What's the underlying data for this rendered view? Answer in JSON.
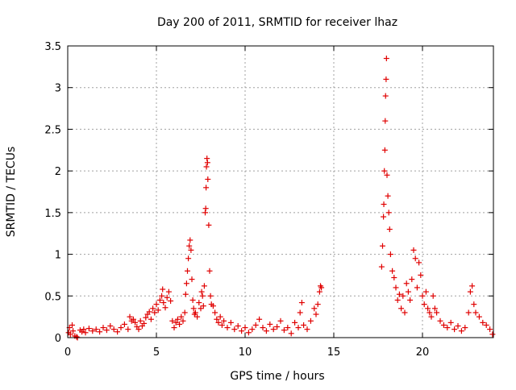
{
  "chart_data": {
    "type": "scatter",
    "title": "Day 200 of 2011, SRMTID for receiver lhaz",
    "xlabel": "GPS time / hours",
    "ylabel": "SRMTID / TECUs",
    "xlim": [
      0,
      24
    ],
    "ylim": [
      0,
      3.5
    ],
    "grid": true,
    "legend": "none",
    "marker": "+",
    "marker_color": "#e00000",
    "x_ticks": [
      {
        "value": 0,
        "label": "0"
      },
      {
        "value": 5,
        "label": "5"
      },
      {
        "value": 10,
        "label": "10"
      },
      {
        "value": 15,
        "label": "15"
      },
      {
        "value": 20,
        "label": "20"
      }
    ],
    "y_ticks": [
      {
        "value": 0,
        "label": "0"
      },
      {
        "value": 0.5,
        "label": "0.5"
      },
      {
        "value": 1,
        "label": "1"
      },
      {
        "value": 1.5,
        "label": "1.5"
      },
      {
        "value": 2,
        "label": "2"
      },
      {
        "value": 2.5,
        "label": "2.5"
      },
      {
        "value": 3,
        "label": "3"
      },
      {
        "value": 3.5,
        "label": "3.5"
      }
    ],
    "series": [
      {
        "name": "SRMTID",
        "points": [
          [
            0.05,
            0.06
          ],
          [
            0.1,
            0.12
          ],
          [
            0.15,
            0.04
          ],
          [
            0.25,
            0.15
          ],
          [
            0.3,
            0.08
          ],
          [
            0.4,
            0.02
          ],
          [
            0.5,
            0.01
          ],
          [
            0.55,
            0.0
          ],
          [
            0.7,
            0.09
          ],
          [
            0.8,
            0.07
          ],
          [
            0.9,
            0.1
          ],
          [
            1.0,
            0.06
          ],
          [
            1.2,
            0.11
          ],
          [
            1.4,
            0.08
          ],
          [
            1.6,
            0.1
          ],
          [
            1.8,
            0.07
          ],
          [
            2.0,
            0.12
          ],
          [
            2.2,
            0.09
          ],
          [
            2.4,
            0.14
          ],
          [
            2.6,
            0.1
          ],
          [
            2.8,
            0.07
          ],
          [
            3.0,
            0.12
          ],
          [
            3.2,
            0.16
          ],
          [
            3.4,
            0.1
          ],
          [
            3.5,
            0.25
          ],
          [
            3.6,
            0.2
          ],
          [
            3.7,
            0.22
          ],
          [
            3.8,
            0.18
          ],
          [
            3.9,
            0.13
          ],
          [
            4.0,
            0.1
          ],
          [
            4.1,
            0.2
          ],
          [
            4.2,
            0.14
          ],
          [
            4.3,
            0.17
          ],
          [
            4.4,
            0.24
          ],
          [
            4.5,
            0.28
          ],
          [
            4.6,
            0.31
          ],
          [
            4.7,
            0.22
          ],
          [
            4.8,
            0.35
          ],
          [
            4.9,
            0.3
          ],
          [
            5.0,
            0.4
          ],
          [
            5.1,
            0.33
          ],
          [
            5.2,
            0.45
          ],
          [
            5.3,
            0.5
          ],
          [
            5.35,
            0.58
          ],
          [
            5.4,
            0.42
          ],
          [
            5.5,
            0.36
          ],
          [
            5.6,
            0.48
          ],
          [
            5.7,
            0.55
          ],
          [
            5.8,
            0.44
          ],
          [
            5.9,
            0.2
          ],
          [
            6.0,
            0.12
          ],
          [
            6.1,
            0.18
          ],
          [
            6.2,
            0.22
          ],
          [
            6.3,
            0.16
          ],
          [
            6.4,
            0.25
          ],
          [
            6.5,
            0.2
          ],
          [
            6.6,
            0.3
          ],
          [
            6.65,
            0.52
          ],
          [
            6.7,
            0.65
          ],
          [
            6.75,
            0.8
          ],
          [
            6.8,
            0.95
          ],
          [
            6.85,
            1.1
          ],
          [
            6.9,
            1.17
          ],
          [
            6.95,
            1.05
          ],
          [
            7.0,
            0.7
          ],
          [
            7.05,
            0.45
          ],
          [
            7.1,
            0.35
          ],
          [
            7.15,
            0.28
          ],
          [
            7.2,
            0.3
          ],
          [
            7.3,
            0.25
          ],
          [
            7.4,
            0.42
          ],
          [
            7.5,
            0.35
          ],
          [
            7.55,
            0.55
          ],
          [
            7.6,
            0.5
          ],
          [
            7.65,
            0.38
          ],
          [
            7.7,
            0.62
          ],
          [
            7.75,
            1.5
          ],
          [
            7.78,
            1.55
          ],
          [
            7.8,
            1.8
          ],
          [
            7.82,
            2.05
          ],
          [
            7.85,
            2.15
          ],
          [
            7.88,
            2.1
          ],
          [
            7.9,
            1.9
          ],
          [
            7.95,
            1.35
          ],
          [
            8.0,
            0.8
          ],
          [
            8.05,
            0.5
          ],
          [
            8.1,
            0.4
          ],
          [
            8.2,
            0.38
          ],
          [
            8.3,
            0.3
          ],
          [
            8.4,
            0.22
          ],
          [
            8.5,
            0.18
          ],
          [
            8.6,
            0.25
          ],
          [
            8.7,
            0.15
          ],
          [
            8.8,
            0.2
          ],
          [
            9.0,
            0.12
          ],
          [
            9.2,
            0.18
          ],
          [
            9.4,
            0.1
          ],
          [
            9.6,
            0.14
          ],
          [
            9.8,
            0.08
          ],
          [
            10.0,
            0.12
          ],
          [
            10.2,
            0.06
          ],
          [
            10.4,
            0.1
          ],
          [
            10.6,
            0.15
          ],
          [
            10.8,
            0.22
          ],
          [
            11.0,
            0.12
          ],
          [
            11.2,
            0.08
          ],
          [
            11.4,
            0.16
          ],
          [
            11.6,
            0.1
          ],
          [
            11.8,
            0.13
          ],
          [
            12.0,
            0.2
          ],
          [
            12.2,
            0.09
          ],
          [
            12.4,
            0.12
          ],
          [
            12.6,
            0.05
          ],
          [
            12.8,
            0.18
          ],
          [
            13.0,
            0.12
          ],
          [
            13.1,
            0.3
          ],
          [
            13.2,
            0.42
          ],
          [
            13.3,
            0.15
          ],
          [
            13.5,
            0.1
          ],
          [
            13.7,
            0.2
          ],
          [
            13.9,
            0.35
          ],
          [
            14.0,
            0.28
          ],
          [
            14.1,
            0.4
          ],
          [
            14.2,
            0.55
          ],
          [
            14.25,
            0.62
          ],
          [
            14.3,
            0.6
          ],
          [
            17.7,
            0.85
          ],
          [
            17.75,
            1.1
          ],
          [
            17.8,
            1.45
          ],
          [
            17.82,
            1.6
          ],
          [
            17.85,
            2.0
          ],
          [
            17.88,
            2.25
          ],
          [
            17.9,
            2.6
          ],
          [
            17.92,
            2.9
          ],
          [
            17.95,
            3.1
          ],
          [
            17.97,
            3.35
          ],
          [
            18.0,
            1.95
          ],
          [
            18.05,
            1.7
          ],
          [
            18.1,
            1.5
          ],
          [
            18.15,
            1.3
          ],
          [
            18.2,
            1.0
          ],
          [
            18.3,
            0.8
          ],
          [
            18.4,
            0.72
          ],
          [
            18.5,
            0.6
          ],
          [
            18.6,
            0.45
          ],
          [
            18.7,
            0.52
          ],
          [
            18.8,
            0.35
          ],
          [
            18.9,
            0.5
          ],
          [
            19.0,
            0.3
          ],
          [
            19.1,
            0.65
          ],
          [
            19.2,
            0.55
          ],
          [
            19.3,
            0.45
          ],
          [
            19.4,
            0.7
          ],
          [
            19.5,
            1.05
          ],
          [
            19.6,
            0.95
          ],
          [
            19.7,
            0.6
          ],
          [
            19.8,
            0.9
          ],
          [
            19.9,
            0.75
          ],
          [
            20.0,
            0.5
          ],
          [
            20.1,
            0.4
          ],
          [
            20.2,
            0.55
          ],
          [
            20.3,
            0.35
          ],
          [
            20.4,
            0.3
          ],
          [
            20.5,
            0.25
          ],
          [
            20.6,
            0.5
          ],
          [
            20.7,
            0.35
          ],
          [
            20.8,
            0.3
          ],
          [
            21.0,
            0.2
          ],
          [
            21.2,
            0.15
          ],
          [
            21.4,
            0.12
          ],
          [
            21.6,
            0.18
          ],
          [
            21.8,
            0.1
          ],
          [
            22.0,
            0.14
          ],
          [
            22.2,
            0.08
          ],
          [
            22.4,
            0.12
          ],
          [
            22.6,
            0.3
          ],
          [
            22.7,
            0.55
          ],
          [
            22.8,
            0.62
          ],
          [
            22.9,
            0.4
          ],
          [
            23.0,
            0.3
          ],
          [
            23.2,
            0.25
          ],
          [
            23.4,
            0.18
          ],
          [
            23.6,
            0.15
          ],
          [
            23.8,
            0.1
          ],
          [
            23.95,
            0.04
          ]
        ]
      }
    ]
  }
}
